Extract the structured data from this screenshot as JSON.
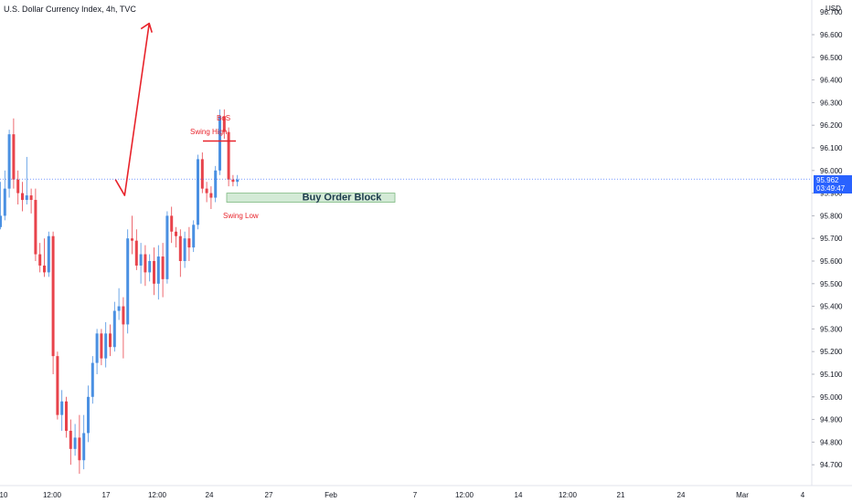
{
  "header": {
    "title": "U.S. Dollar Currency Index, 4h, TVC",
    "currency": "USD"
  },
  "price_badge": {
    "price": "95.962",
    "countdown": "03:49:47",
    "color": "#2962ff"
  },
  "colors": {
    "up": "#4a90e2",
    "down": "#e8434b",
    "annotation": "#e8232b",
    "zone_fill": "#d3ead6",
    "zone_border": "#7cb87f"
  },
  "chart_data": {
    "type": "candlestick",
    "y_axis": {
      "min": 94.65,
      "max": 96.72,
      "ticks": [
        "96.600",
        "96.500",
        "96.400",
        "96.300",
        "96.200",
        "96.100",
        "96.000",
        "95.900",
        "95.800",
        "95.700",
        "95.600",
        "95.500",
        "95.400",
        "95.300",
        "95.200",
        "95.100",
        "95.000",
        "94.900",
        "94.800",
        "94.700"
      ],
      "partial_top_tick": "96.700"
    },
    "x_axis": {
      "labels": [
        "10",
        "12:00",
        "17",
        "12:00",
        "24",
        "27",
        "Feb",
        "7",
        "12:00",
        "14",
        "12:00",
        "21",
        "24",
        "Mar",
        "4"
      ]
    },
    "candles": [
      [
        95.75,
        95.8,
        95.74,
        95.95
      ],
      [
        95.8,
        95.92,
        95.78,
        96.0
      ],
      [
        95.92,
        96.16,
        95.88,
        96.18
      ],
      [
        96.16,
        95.96,
        95.92,
        96.23
      ],
      [
        95.96,
        95.9,
        95.85,
        96.0
      ],
      [
        95.9,
        95.87,
        95.82,
        95.95
      ],
      [
        95.87,
        95.89,
        95.85,
        96.06
      ],
      [
        95.89,
        95.87,
        95.81,
        95.92
      ],
      [
        95.87,
        95.63,
        95.6,
        95.92
      ],
      [
        95.63,
        95.58,
        95.55,
        95.68
      ],
      [
        95.58,
        95.55,
        95.53,
        95.7
      ],
      [
        95.55,
        95.71,
        95.53,
        95.73
      ],
      [
        95.71,
        95.18,
        95.1,
        95.73
      ],
      [
        95.18,
        94.92,
        94.9,
        95.2
      ],
      [
        94.92,
        94.98,
        94.85,
        95.03
      ],
      [
        94.98,
        94.85,
        94.82,
        95.0
      ],
      [
        94.85,
        94.77,
        94.7,
        94.9
      ],
      [
        94.77,
        94.82,
        94.74,
        94.88
      ],
      [
        94.82,
        94.72,
        94.66,
        94.92
      ],
      [
        94.72,
        94.84,
        94.68,
        94.92
      ],
      [
        94.84,
        95.0,
        94.8,
        95.05
      ],
      [
        95.0,
        95.15,
        94.97,
        95.18
      ],
      [
        95.15,
        95.28,
        95.1,
        95.3
      ],
      [
        95.28,
        95.17,
        95.14,
        95.3
      ],
      [
        95.17,
        95.28,
        95.13,
        95.33
      ],
      [
        95.28,
        95.22,
        95.18,
        95.32
      ],
      [
        95.22,
        95.38,
        95.2,
        95.42
      ],
      [
        95.38,
        95.4,
        95.34,
        95.48
      ],
      [
        95.4,
        95.32,
        95.17,
        95.44
      ],
      [
        95.32,
        95.7,
        95.28,
        95.74
      ],
      [
        95.7,
        95.69,
        95.63,
        95.8
      ],
      [
        95.69,
        95.58,
        95.56,
        95.74
      ],
      [
        95.58,
        95.63,
        95.5,
        95.68
      ],
      [
        95.63,
        95.55,
        95.49,
        95.67
      ],
      [
        95.55,
        95.6,
        95.51,
        95.63
      ],
      [
        95.6,
        95.5,
        95.45,
        95.66
      ],
      [
        95.5,
        95.62,
        95.43,
        95.67
      ],
      [
        95.62,
        95.52,
        95.44,
        95.68
      ],
      [
        95.52,
        95.8,
        95.5,
        95.82
      ],
      [
        95.8,
        95.73,
        95.68,
        95.84
      ],
      [
        95.73,
        95.71,
        95.66,
        95.75
      ],
      [
        95.71,
        95.6,
        95.53,
        95.74
      ],
      [
        95.6,
        95.7,
        95.57,
        95.73
      ],
      [
        95.7,
        95.66,
        95.6,
        95.75
      ],
      [
        95.66,
        95.76,
        95.64,
        95.78
      ],
      [
        95.76,
        96.05,
        95.74,
        96.07
      ],
      [
        96.05,
        95.92,
        95.9,
        96.08
      ],
      [
        95.92,
        95.9,
        95.86,
        95.95
      ],
      [
        95.9,
        95.88,
        95.83,
        95.93
      ],
      [
        95.88,
        96.0,
        95.86,
        96.02
      ],
      [
        96.0,
        96.24,
        95.98,
        96.27
      ],
      [
        96.24,
        96.17,
        96.14,
        96.27
      ],
      [
        96.17,
        95.96,
        95.93,
        96.19
      ],
      [
        95.96,
        95.95,
        95.93,
        95.98
      ],
      [
        95.95,
        95.96,
        95.93,
        95.98
      ]
    ],
    "annotations": {
      "bos_label": "BoS",
      "swing_high_label": "Swing High",
      "swing_low_label": "Swing Low",
      "order_block_label": "Buy Order Block",
      "swing_high_level": 96.13,
      "order_block": {
        "top": 95.9,
        "bottom": 95.86
      },
      "projection_path": [
        [
          26.2,
          95.96
        ],
        [
          28.3,
          95.89
        ],
        [
          33.9,
          96.65
        ]
      ]
    }
  }
}
